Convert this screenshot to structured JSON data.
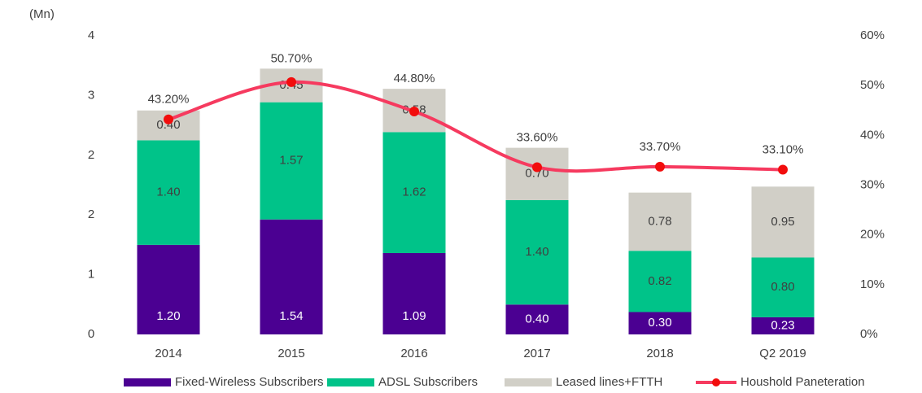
{
  "chart_data": {
    "type": "bar",
    "stacked": true,
    "unit_label": "(Mn)",
    "categories": [
      "2014",
      "2015",
      "2016",
      "2017",
      "2018",
      "Q2 2019"
    ],
    "series": [
      {
        "name": "Fixed-Wireless Subscribers",
        "color": "#4b0092",
        "values": [
          1.2,
          1.54,
          1.09,
          0.4,
          0.3,
          0.23
        ],
        "value_labels": [
          "1.20",
          "1.54",
          "1.09",
          "0.40",
          "0.30",
          "0.23"
        ]
      },
      {
        "name": "ADSL Subscribers",
        "color": "#00c389",
        "values": [
          1.4,
          1.57,
          1.62,
          1.4,
          0.82,
          0.8
        ],
        "value_labels": [
          "1.40",
          "1.57",
          "1.62",
          "1.40",
          "0.82",
          "0.80"
        ]
      },
      {
        "name": "Leased lines+FTTH",
        "color": "#d1cfc7",
        "values": [
          0.4,
          0.45,
          0.58,
          0.7,
          0.78,
          0.95
        ],
        "value_labels": [
          "0.40",
          "0.45",
          "0.58",
          "0.70",
          "0.78",
          "0.95"
        ]
      },
      {
        "name": "Houshold Paneteration",
        "type": "line",
        "axis": "y2",
        "color": "#f63a5f",
        "marker_color": "#f20d0d",
        "values": [
          43.2,
          50.7,
          44.8,
          33.6,
          33.7,
          33.1
        ],
        "value_labels": [
          "43.20%",
          "50.70%",
          "44.80%",
          "33.60%",
          "33.70%",
          "33.10%"
        ]
      }
    ],
    "ylim": [
      0,
      4
    ],
    "yticks": [
      0,
      {
        "value": 0.8,
        "label": "1"
      },
      {
        "value": 1.6,
        "label": "2"
      },
      {
        "value": 2.4,
        "label": "2"
      },
      {
        "value": 3.2,
        "label": "3"
      },
      4
    ],
    "y2lim": [
      0,
      60
    ],
    "y2ticks": [
      {
        "value": 0,
        "label": "0%"
      },
      {
        "value": 10,
        "label": "10%"
      },
      {
        "value": 20,
        "label": "20%"
      },
      {
        "value": 30,
        "label": "30%"
      },
      {
        "value": 40,
        "label": "40%"
      },
      {
        "value": 50,
        "label": "50%"
      },
      {
        "value": 60,
        "label": "60%"
      }
    ],
    "grid": false,
    "legend": "bottom"
  }
}
